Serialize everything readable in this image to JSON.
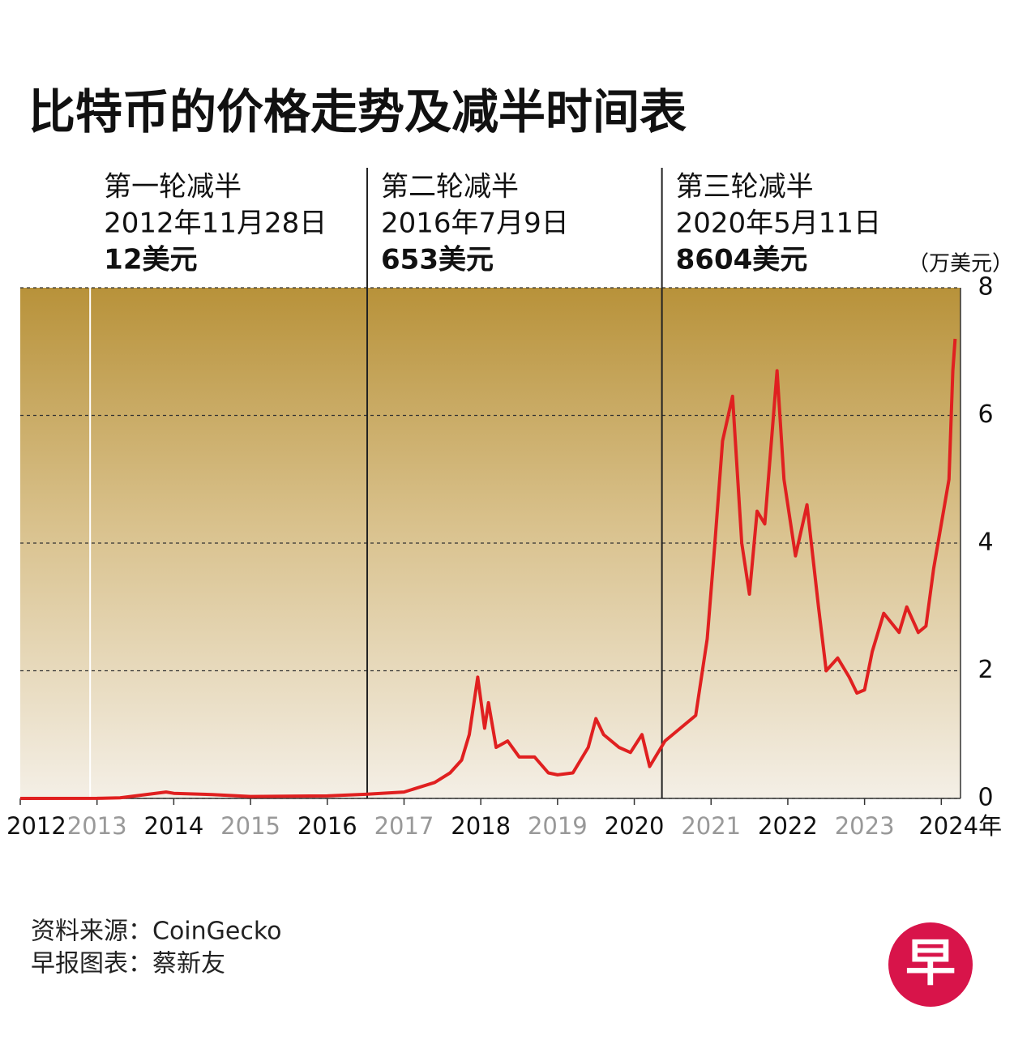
{
  "chart_data": {
    "type": "line",
    "title": "比特币的价格走势及减半时间表",
    "y_unit": "（万美元）",
    "x": [
      2012.0,
      2013.0,
      2013.3,
      2013.9,
      2014.0,
      2014.5,
      2015.0,
      2016.0,
      2016.5,
      2017.0,
      2017.4,
      2017.6,
      2017.75,
      2017.85,
      2017.96,
      2018.05,
      2018.1,
      2018.2,
      2018.35,
      2018.5,
      2018.7,
      2018.88,
      2019.0,
      2019.2,
      2019.4,
      2019.5,
      2019.6,
      2019.8,
      2019.95,
      2020.1,
      2020.2,
      2020.4,
      2020.6,
      2020.8,
      2020.95,
      2021.05,
      2021.15,
      2021.28,
      2021.4,
      2021.5,
      2021.6,
      2021.7,
      2021.86,
      2021.95,
      2022.0,
      2022.1,
      2022.25,
      2022.4,
      2022.5,
      2022.65,
      2022.8,
      2022.9,
      2023.0,
      2023.1,
      2023.25,
      2023.45,
      2023.55,
      2023.7,
      2023.8,
      2023.9,
      2024.0,
      2024.1,
      2024.15,
      2024.18
    ],
    "series": [
      {
        "color": "#e02020",
        "values": [
          0.0005,
          0.0013,
          0.01,
          0.1,
          0.08,
          0.06,
          0.03,
          0.04,
          0.065,
          0.1,
          0.25,
          0.4,
          0.6,
          1.0,
          1.9,
          1.1,
          1.5,
          0.8,
          0.9,
          0.65,
          0.65,
          0.4,
          0.37,
          0.4,
          0.8,
          1.25,
          1.0,
          0.8,
          0.72,
          1.0,
          0.5,
          0.9,
          1.1,
          1.3,
          2.5,
          4.0,
          5.6,
          6.3,
          4.0,
          3.2,
          4.5,
          4.3,
          6.7,
          5.0,
          4.6,
          3.8,
          4.6,
          3.0,
          2.0,
          2.2,
          1.9,
          1.65,
          1.7,
          2.3,
          2.9,
          2.6,
          3.0,
          2.6,
          2.7,
          3.6,
          4.3,
          5.0,
          6.7,
          7.2
        ]
      }
    ],
    "xlim": [
      2012,
      2024.25
    ],
    "xticks": [
      2012,
      2013,
      2014,
      2015,
      2016,
      2017,
      2018,
      2019,
      2020,
      2021,
      2022,
      2023,
      {
        "value": 2024,
        "label": "2024年"
      }
    ],
    "ylim": [
      0,
      8
    ],
    "yticks": [
      0,
      2,
      4,
      6,
      8
    ],
    "grid": true,
    "annotations": [
      {
        "x": 2012.91,
        "title": "第一轮减半",
        "date": "2012年11月28日",
        "price": "12美元"
      },
      {
        "x": 2016.52,
        "title": "第二轮减半",
        "date": "2016年7月9日",
        "price": "653美元"
      },
      {
        "x": 2020.36,
        "title": "第三轮减半",
        "date": "2020年5月11日",
        "price": "8604美元"
      }
    ],
    "source": "资料来源：CoinGecko",
    "credit": "早报图表：蔡新友",
    "logo": "早"
  }
}
